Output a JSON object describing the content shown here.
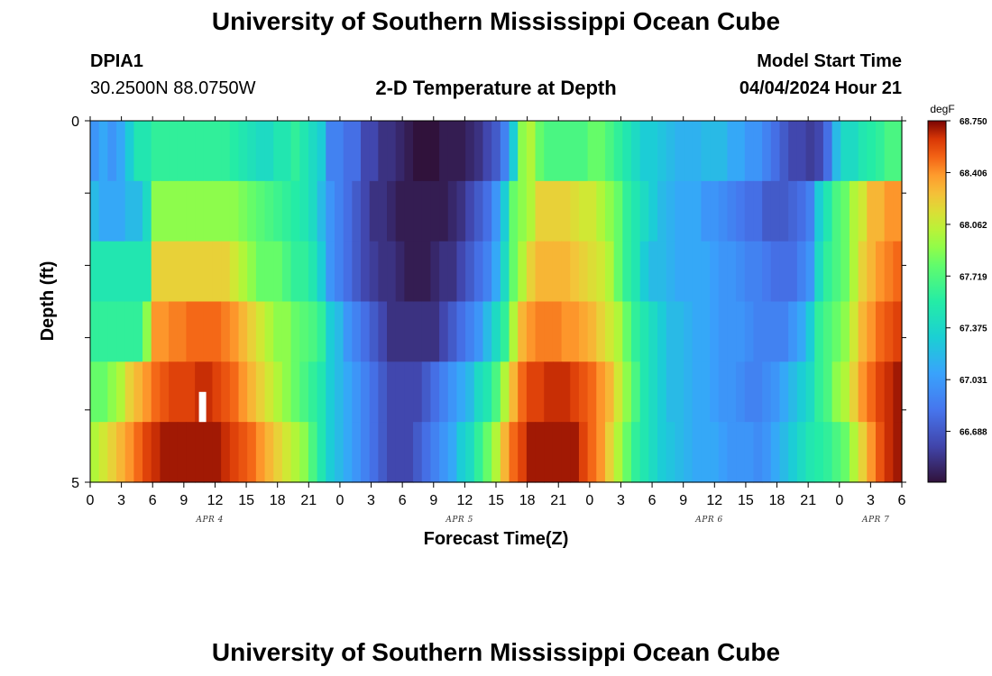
{
  "page": {
    "title_top": "University of Southern Mississippi Ocean Cube",
    "title_bottom": "University of Southern Mississippi Ocean Cube"
  },
  "header": {
    "station": "DPIA1",
    "coords": "30.2500N  88.0750W",
    "subtitle": "2-D Temperature at Depth",
    "model_label": "Model Start Time",
    "model_time": "04/04/2024 Hour 21"
  },
  "chart_data": {
    "type": "heatmap",
    "title": "2-D Temperature at Depth",
    "xlabel": "Forecast Time(Z)",
    "ylabel": "Depth (ft)",
    "units": "degF",
    "y_ticks": [
      "0",
      "5"
    ],
    "x_ticks": [
      "0",
      "3",
      "6",
      "9",
      "12",
      "15",
      "18",
      "21",
      "0",
      "3",
      "6",
      "9",
      "12",
      "15",
      "18",
      "21",
      "0",
      "3",
      "6",
      "9",
      "12",
      "15",
      "18",
      "21",
      "0",
      "3",
      "6"
    ],
    "x_tick_hours": [
      0,
      3,
      6,
      9,
      12,
      15,
      18,
      21,
      24,
      27,
      30,
      33,
      36,
      39,
      42,
      45,
      48,
      51,
      54,
      57,
      60,
      63,
      66,
      69,
      72,
      75,
      78
    ],
    "date_labels": [
      {
        "text": "APR 4",
        "hour": 11.5
      },
      {
        "text": "APR 5",
        "hour": 35.5
      },
      {
        "text": "APR 6",
        "hour": 59.5
      },
      {
        "text": "APR 7",
        "hour": 75.5
      }
    ],
    "xlim": [
      0,
      78
    ],
    "colorbar_ticks": [
      "68.750",
      "68.406",
      "68.062",
      "67.719",
      "67.375",
      "67.031",
      "66.688"
    ],
    "colorbar_values": [
      68.75,
      68.406,
      68.062,
      67.719,
      67.375,
      67.031,
      66.688
    ],
    "value_range": [
      66.35,
      68.75
    ],
    "missing_marker": {
      "hour": 10.8,
      "layer": 4
    },
    "series": [
      {
        "name": "layer-1 (surface)",
        "values": [
          67.0,
          67.1,
          67.0,
          67.1,
          67.3,
          67.5,
          67.5,
          67.6,
          67.6,
          67.6,
          67.6,
          67.6,
          67.6,
          67.6,
          67.6,
          67.6,
          67.55,
          67.5,
          67.45,
          67.4,
          67.4,
          67.5,
          67.5,
          67.6,
          67.5,
          67.4,
          67.3,
          66.9,
          66.9,
          66.8,
          66.8,
          66.6,
          66.6,
          66.5,
          66.5,
          66.45,
          66.4,
          66.35,
          66.35,
          66.35,
          66.4,
          66.4,
          66.4,
          66.45,
          66.5,
          66.6,
          66.7,
          66.9,
          67.3,
          67.9,
          68.0,
          67.8,
          67.7,
          67.7,
          67.7,
          67.7,
          67.7,
          67.8,
          67.8,
          67.7,
          67.6,
          67.5,
          67.4,
          67.3,
          67.3,
          67.25,
          67.2,
          67.15,
          67.15,
          67.15,
          67.2,
          67.2,
          67.2,
          67.1,
          67.1,
          67.0,
          67.0,
          66.9,
          66.8,
          66.7,
          66.6,
          66.6,
          66.55,
          66.6,
          66.8,
          67.2,
          67.4,
          67.4,
          67.5,
          67.55,
          67.6,
          67.7,
          67.7
        ]
      },
      {
        "name": "layer-2",
        "values": [
          67.2,
          67.1,
          67.1,
          67.1,
          67.2,
          67.2,
          67.4,
          67.9,
          67.9,
          67.9,
          67.9,
          67.9,
          67.9,
          67.9,
          67.9,
          67.9,
          67.9,
          67.85,
          67.8,
          67.75,
          67.7,
          67.65,
          67.6,
          67.55,
          67.5,
          67.4,
          67.2,
          67.0,
          66.9,
          66.8,
          66.7,
          66.6,
          66.5,
          66.5,
          66.45,
          66.4,
          66.4,
          66.4,
          66.4,
          66.4,
          66.4,
          66.45,
          66.5,
          66.6,
          66.7,
          66.8,
          67.0,
          67.3,
          67.8,
          67.9,
          68.0,
          68.2,
          68.2,
          68.2,
          68.2,
          68.15,
          68.1,
          68.1,
          68.0,
          67.9,
          67.8,
          67.6,
          67.5,
          67.4,
          67.3,
          67.2,
          67.15,
          67.1,
          67.1,
          67.1,
          67.0,
          67.0,
          66.95,
          66.9,
          66.85,
          66.8,
          66.8,
          66.7,
          66.7,
          66.7,
          66.75,
          66.8,
          66.9,
          67.3,
          67.5,
          67.7,
          67.8,
          68.0,
          68.1,
          68.3,
          68.3,
          68.4,
          68.4
        ]
      },
      {
        "name": "layer-3",
        "values": [
          67.5,
          67.5,
          67.5,
          67.5,
          67.5,
          67.5,
          67.5,
          68.2,
          68.2,
          68.2,
          68.2,
          68.2,
          68.2,
          68.2,
          68.2,
          68.2,
          68.1,
          68.0,
          67.9,
          67.8,
          67.8,
          67.8,
          67.7,
          67.6,
          67.6,
          67.5,
          67.3,
          67.0,
          66.9,
          66.8,
          66.7,
          66.6,
          66.55,
          66.5,
          66.5,
          66.45,
          66.4,
          66.4,
          66.4,
          66.45,
          66.5,
          66.5,
          66.6,
          66.7,
          66.8,
          66.9,
          67.1,
          67.4,
          67.8,
          68.0,
          68.2,
          68.3,
          68.3,
          68.3,
          68.3,
          68.25,
          68.2,
          68.15,
          68.1,
          68.0,
          67.8,
          67.6,
          67.5,
          67.3,
          67.2,
          67.2,
          67.15,
          67.1,
          67.1,
          67.1,
          67.1,
          67.05,
          67.0,
          67.0,
          66.95,
          66.9,
          66.9,
          66.85,
          66.8,
          66.8,
          66.8,
          66.9,
          67.0,
          67.4,
          67.6,
          67.7,
          67.8,
          68.0,
          68.2,
          68.3,
          68.4,
          68.45,
          68.5
        ]
      },
      {
        "name": "layer-4",
        "values": [
          67.6,
          67.6,
          67.6,
          67.6,
          67.6,
          67.6,
          67.9,
          68.4,
          68.4,
          68.45,
          68.45,
          68.5,
          68.5,
          68.5,
          68.5,
          68.45,
          68.4,
          68.3,
          68.2,
          68.1,
          68.0,
          67.9,
          67.9,
          67.8,
          67.75,
          67.7,
          67.6,
          67.3,
          67.2,
          67.0,
          66.9,
          66.8,
          66.7,
          66.6,
          66.5,
          66.5,
          66.5,
          66.5,
          66.5,
          66.5,
          66.6,
          66.7,
          66.8,
          66.9,
          67.0,
          67.2,
          67.4,
          67.6,
          68.0,
          68.3,
          68.4,
          68.45,
          68.45,
          68.45,
          68.4,
          68.4,
          68.35,
          68.3,
          68.2,
          68.1,
          68.0,
          67.8,
          67.6,
          67.5,
          67.4,
          67.3,
          67.2,
          67.2,
          67.15,
          67.1,
          67.1,
          67.05,
          67.0,
          67.0,
          67.0,
          66.95,
          66.9,
          66.9,
          66.9,
          66.9,
          67.0,
          67.1,
          67.3,
          67.6,
          67.7,
          67.8,
          67.9,
          68.1,
          68.3,
          68.4,
          68.5,
          68.55,
          68.6
        ]
      },
      {
        "name": "layer-5",
        "values": [
          67.8,
          67.8,
          67.9,
          68.0,
          68.2,
          68.3,
          68.4,
          68.5,
          68.55,
          68.6,
          68.6,
          68.6,
          68.65,
          68.65,
          68.6,
          68.55,
          68.5,
          68.4,
          68.3,
          68.2,
          68.1,
          68.0,
          67.9,
          67.8,
          67.7,
          67.6,
          67.5,
          67.3,
          67.2,
          67.1,
          67.0,
          66.9,
          66.8,
          66.7,
          66.6,
          66.6,
          66.6,
          66.6,
          66.7,
          66.8,
          66.9,
          67.0,
          67.1,
          67.2,
          67.4,
          67.5,
          67.7,
          68.0,
          68.3,
          68.5,
          68.6,
          68.6,
          68.65,
          68.65,
          68.65,
          68.6,
          68.55,
          68.5,
          68.4,
          68.3,
          68.1,
          67.9,
          67.7,
          67.5,
          67.4,
          67.3,
          67.2,
          67.2,
          67.15,
          67.1,
          67.1,
          67.05,
          67.0,
          67.0,
          66.95,
          66.9,
          66.9,
          66.95,
          67.0,
          67.1,
          67.2,
          67.3,
          67.4,
          67.6,
          67.7,
          67.9,
          68.0,
          68.2,
          68.4,
          68.5,
          68.6,
          68.65,
          68.7
        ]
      },
      {
        "name": "layer-6 (bottom)",
        "values": [
          68.0,
          68.1,
          68.2,
          68.3,
          68.4,
          68.5,
          68.6,
          68.65,
          68.7,
          68.7,
          68.7,
          68.7,
          68.7,
          68.7,
          68.7,
          68.65,
          68.6,
          68.55,
          68.5,
          68.4,
          68.3,
          68.2,
          68.1,
          68.0,
          67.9,
          67.7,
          67.5,
          67.3,
          67.2,
          67.1,
          67.0,
          66.9,
          66.8,
          66.7,
          66.6,
          66.6,
          66.6,
          66.7,
          66.8,
          66.9,
          67.0,
          67.1,
          67.3,
          67.4,
          67.6,
          67.8,
          68.0,
          68.3,
          68.5,
          68.6,
          68.7,
          68.7,
          68.7,
          68.7,
          68.7,
          68.7,
          68.6,
          68.5,
          68.4,
          68.2,
          68.0,
          67.8,
          67.6,
          67.5,
          67.4,
          67.3,
          67.25,
          67.2,
          67.15,
          67.1,
          67.1,
          67.1,
          67.05,
          67.0,
          67.0,
          67.0,
          66.95,
          67.0,
          67.1,
          67.2,
          67.3,
          67.4,
          67.5,
          67.55,
          67.6,
          67.7,
          67.8,
          68.0,
          68.2,
          68.4,
          68.55,
          68.65,
          68.7
        ]
      }
    ]
  }
}
